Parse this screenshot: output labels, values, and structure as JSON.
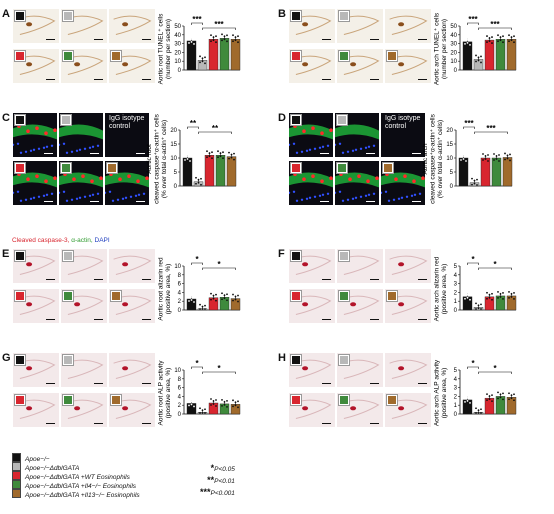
{
  "groups": [
    {
      "name": "Apoe−/−",
      "color": "#111111"
    },
    {
      "name": "Apoe−/−ΔdblGATA",
      "color": "#b8b8b8"
    },
    {
      "name": "Apoe−/−ΔdblGATA +WT Eosinophils",
      "color": "#d8262f"
    },
    {
      "name": "Apoe−/−ΔdblGATA +Il4−/− Eosinophils",
      "color": "#3f8a3c"
    },
    {
      "name": "Apoe−/−ΔdblGATA +Il13−/− Eosinophils",
      "color": "#a06a2c"
    }
  ],
  "significance": [
    {
      "mark": "*",
      "text": "P<0.05"
    },
    {
      "mark": "**",
      "text": "P<0.01"
    },
    {
      "mark": "***",
      "text": "P<0.001"
    }
  ],
  "fluor_label": {
    "part1": "Cleaved caspase-3,",
    "part2": " α-actin,",
    "part3": " DAPI"
  },
  "isotype_label": "IgG isotype control",
  "panels": [
    {
      "letter": "A",
      "kind": "ihc",
      "tint": "brown"
    },
    {
      "letter": "B",
      "kind": "ihc",
      "tint": "brown"
    },
    {
      "letter": "C",
      "kind": "fluo",
      "tint": "fluo"
    },
    {
      "letter": "D",
      "kind": "fluo",
      "tint": "fluo"
    },
    {
      "letter": "E",
      "kind": "ihc",
      "tint": "pink"
    },
    {
      "letter": "F",
      "kind": "ihc",
      "tint": "pink"
    },
    {
      "letter": "G",
      "kind": "ihc",
      "tint": "pink"
    },
    {
      "letter": "H",
      "kind": "ihc",
      "tint": "pink"
    }
  ],
  "chart_data": [
    {
      "panel": "A",
      "type": "bar",
      "ylabel": [
        "Aortic root TUNEL⁺ cells",
        "(number per section)"
      ],
      "ylim": [
        0,
        50
      ],
      "yticks": [
        0,
        10,
        20,
        30,
        40,
        50
      ],
      "values": [
        33,
        11,
        35,
        36,
        35
      ],
      "sig": [
        {
          "from": 0,
          "to": 1,
          "mark": "***",
          "level": 0
        },
        {
          "from": 1,
          "to": 4,
          "mark": "***",
          "level": 1
        }
      ]
    },
    {
      "panel": "B",
      "type": "bar",
      "ylabel": [
        "Aortic arch TUNEL⁺ cells",
        "(number per section)"
      ],
      "ylim": [
        0,
        50
      ],
      "yticks": [
        0,
        10,
        20,
        30,
        40,
        50
      ],
      "values": [
        32,
        12,
        34,
        35,
        35
      ],
      "sig": [
        {
          "from": 0,
          "to": 1,
          "mark": "***",
          "level": 0
        },
        {
          "from": 1,
          "to": 4,
          "mark": "***",
          "level": 1
        }
      ]
    },
    {
      "panel": "C",
      "type": "bar",
      "ylabel": [
        "Aortic root",
        "cleaved caspase⁺α-actin⁺ cells",
        "(% over total α-actin⁺ cells)"
      ],
      "ylim": [
        0,
        20
      ],
      "yticks": [
        0,
        5,
        10,
        15,
        20
      ],
      "values": [
        10,
        1.5,
        11,
        11,
        10.5
      ],
      "sig": [
        {
          "from": 0,
          "to": 1,
          "mark": "**",
          "level": 0
        },
        {
          "from": 1,
          "to": 4,
          "mark": "**",
          "level": 1
        }
      ]
    },
    {
      "panel": "D",
      "type": "bar",
      "ylabel": [
        "Aortic arch",
        "cleaved caspase⁺α-actin⁺ cells",
        "(% over total α-actin⁺ cells)"
      ],
      "ylim": [
        0,
        20
      ],
      "yticks": [
        0,
        5,
        10,
        15,
        20
      ],
      "values": [
        10,
        1.2,
        10,
        10,
        10.2
      ],
      "sig": [
        {
          "from": 0,
          "to": 1,
          "mark": "***",
          "level": 0
        },
        {
          "from": 1,
          "to": 4,
          "mark": "***",
          "level": 1
        }
      ]
    },
    {
      "panel": "E",
      "type": "bar",
      "ylabel": [
        "Aortic root alizarin red",
        "(positive area, %)"
      ],
      "ylim": [
        0,
        10
      ],
      "yticks": [
        0,
        2,
        4,
        6,
        8,
        10
      ],
      "values": [
        2.5,
        0.3,
        2.8,
        2.9,
        2.6
      ],
      "sig": [
        {
          "from": 0,
          "to": 1,
          "mark": "*",
          "level": 0
        },
        {
          "from": 1,
          "to": 4,
          "mark": "*",
          "level": 1
        }
      ]
    },
    {
      "panel": "F",
      "type": "bar",
      "ylabel": [
        "Aortic arch alizarin red",
        "(positive area, %)"
      ],
      "ylim": [
        0,
        5
      ],
      "yticks": [
        0,
        1,
        2,
        3,
        4,
        5
      ],
      "values": [
        1.5,
        0.3,
        1.5,
        1.6,
        1.6
      ],
      "sig": [
        {
          "from": 0,
          "to": 1,
          "mark": "*",
          "level": 0
        },
        {
          "from": 1,
          "to": 4,
          "mark": "*",
          "level": 1
        }
      ]
    },
    {
      "panel": "G",
      "type": "bar",
      "ylabel": [
        "Aortic root ALP activity",
        "(positive area, %)"
      ],
      "ylim": [
        0,
        10
      ],
      "yticks": [
        0,
        2,
        4,
        6,
        8,
        10
      ],
      "values": [
        2.4,
        0.4,
        2.5,
        2.3,
        2.2
      ],
      "sig": [
        {
          "from": 0,
          "to": 1,
          "mark": "*",
          "level": 0
        },
        {
          "from": 1,
          "to": 4,
          "mark": "*",
          "level": 1
        }
      ]
    },
    {
      "panel": "H",
      "type": "bar",
      "ylabel": [
        "Aortic arch ALP activity",
        "(positive area, %)"
      ],
      "ylim": [
        0,
        5
      ],
      "yticks": [
        0,
        1,
        2,
        3,
        4,
        5
      ],
      "values": [
        1.6,
        0.2,
        1.8,
        2.0,
        1.9
      ],
      "sig": [
        {
          "from": 0,
          "to": 1,
          "mark": "*",
          "level": 0
        },
        {
          "from": 1,
          "to": 4,
          "mark": "*",
          "level": 1
        }
      ]
    }
  ]
}
